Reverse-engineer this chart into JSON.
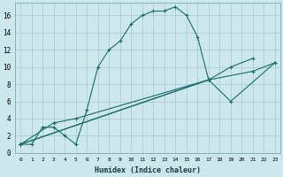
{
  "xlabel": "Humidex (Indice chaleur)",
  "background_color": "#cce8ec",
  "grid_color": "#aacdd4",
  "line_color": "#1a6b6b",
  "xlim": [
    -0.5,
    23.5
  ],
  "ylim": [
    0,
    17.5
  ],
  "xticks": [
    0,
    1,
    2,
    3,
    4,
    5,
    6,
    7,
    8,
    9,
    10,
    11,
    12,
    13,
    14,
    15,
    16,
    17,
    18,
    19,
    20,
    21,
    22,
    23
  ],
  "yticks": [
    0,
    2,
    4,
    6,
    8,
    10,
    12,
    14,
    16
  ],
  "series": [
    {
      "x": [
        0,
        1,
        2,
        3,
        4,
        5,
        6,
        7,
        8,
        9,
        10,
        11,
        12,
        13,
        14,
        15,
        16,
        17
      ],
      "y": [
        1,
        1,
        3,
        3,
        2,
        1,
        5,
        10,
        12,
        13,
        15,
        16,
        16.5,
        16.5,
        17,
        16,
        13.5,
        8.5
      ]
    },
    {
      "x": [
        0,
        17,
        19,
        23
      ],
      "y": [
        1,
        8.5,
        6,
        10.5
      ]
    },
    {
      "x": [
        0,
        17,
        19,
        21
      ],
      "y": [
        1,
        8.5,
        10,
        11
      ]
    },
    {
      "x": [
        0,
        3,
        5,
        17,
        21,
        23
      ],
      "y": [
        1,
        3.5,
        4,
        8.5,
        9.5,
        10.5
      ]
    }
  ]
}
